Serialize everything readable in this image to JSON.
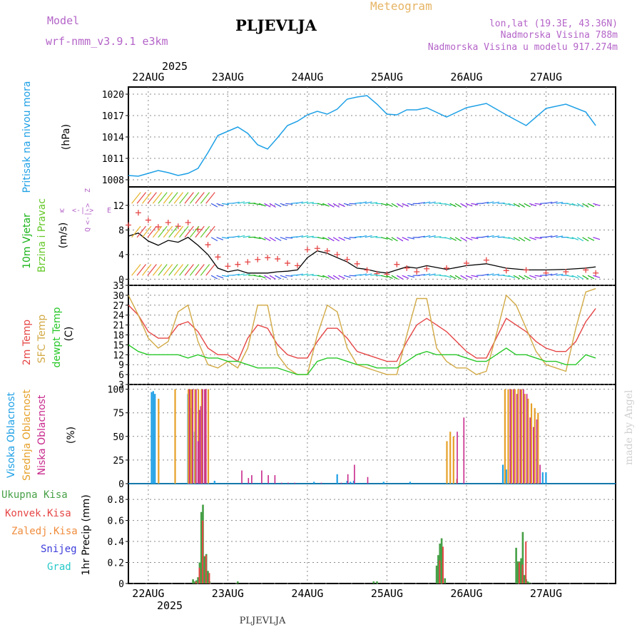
{
  "header": {
    "model_label": "Model",
    "model_name": "wrf-nmm_v3.9.1 e3km",
    "location": "PLJEVLJA",
    "product": "Meteogram",
    "coords": "lon,lat (19.3E, 43.36N)",
    "elevation": "Nadmorska Visina 788m",
    "model_elevation": "Nadmorska Visina u modelu 917.274m",
    "footer_location": "PLJEVLJA",
    "credit": "made by Angel",
    "year": "2025"
  },
  "colors": {
    "pressure": "#1ea0e6",
    "wind_green": "#18b418",
    "wind_lime": "#64c828",
    "t2m": "#e64646",
    "sfc": "#d2aa46",
    "dewpt": "#28c828",
    "high_cloud": "#1ea0e6",
    "mid_cloud": "#e6a028",
    "low_cloud": "#c8288c",
    "total_precip": "#46a046",
    "conv_precip": "#e64646",
    "frz_precip": "#f08c3c",
    "snow": "#3c3cdc",
    "hail": "#28c8c8",
    "meta": "#b464c8",
    "title_orange": "#e6b464"
  },
  "chart_data": [
    {
      "type": "line",
      "id": "pressure",
      "title": "Pritisak na nivou mora",
      "ylabel": "(hPa)",
      "ylim": [
        1007,
        1021
      ],
      "yticks": [
        1008,
        1011,
        1014,
        1017,
        1020
      ],
      "x_hours": [
        0,
        3,
        6,
        9,
        12,
        15,
        18,
        21,
        24,
        27,
        30,
        33,
        36,
        39,
        42,
        45,
        48,
        51,
        54,
        57,
        60,
        63,
        66,
        69,
        72,
        75,
        78,
        81,
        84,
        87,
        90,
        96,
        102,
        108,
        114,
        120,
        126,
        132,
        138,
        141
      ],
      "series": [
        {
          "name": "MSLP",
          "values": [
            1008.6,
            1008.5,
            1008.9,
            1009.3,
            1009.0,
            1008.6,
            1008.9,
            1009.6,
            1011.8,
            1014.2,
            1014.8,
            1015.4,
            1014.5,
            1012.9,
            1012.3,
            1013.9,
            1015.6,
            1016.2,
            1017.1,
            1017.6,
            1017.2,
            1017.9,
            1019.3,
            1019.6,
            1019.8,
            1018.6,
            1017.2,
            1017.1,
            1017.8,
            1017.8,
            1018.1,
            1016.8,
            1018.1,
            1018.7,
            1017.1,
            1015.6,
            1018.0,
            1018.6,
            1017.5,
            1015.6
          ]
        }
      ]
    },
    {
      "type": "line",
      "id": "wind",
      "title": "10m Vjetar",
      "subtitle": "Brzina i Pravac",
      "ylabel": "(m/s)",
      "ylim": [
        -1,
        15
      ],
      "yticks": [
        0,
        4,
        8,
        12
      ],
      "legend_dir": [
        "w",
        "<-|->",
        "E",
        "Z",
        "<-|->",
        "Q"
      ],
      "x_hours": [
        0,
        3,
        6,
        9,
        12,
        15,
        18,
        21,
        24,
        27,
        30,
        33,
        36,
        39,
        42,
        45,
        48,
        51,
        54,
        57,
        60,
        63,
        66,
        69,
        72,
        75,
        78,
        81,
        84,
        87,
        90,
        96,
        102,
        108,
        114,
        120,
        126,
        132,
        138,
        141
      ],
      "series": [
        {
          "name": "speed",
          "values": [
            7.0,
            7.5,
            6.2,
            5.5,
            6.3,
            6.0,
            6.8,
            5.5,
            4.0,
            1.8,
            1.2,
            1.5,
            1.0,
            1.0,
            1.0,
            1.2,
            1.3,
            1.5,
            3.5,
            4.6,
            4.2,
            3.5,
            2.8,
            1.8,
            1.6,
            1.2,
            1.0,
            1.5,
            2.0,
            1.8,
            2.2,
            1.6,
            2.2,
            2.5,
            1.8,
            1.5,
            1.5,
            1.6,
            1.8,
            2.0
          ]
        },
        {
          "name": "gust",
          "values": [
            8.8,
            10.8,
            9.6,
            8.5,
            9.2,
            8.6,
            9.2,
            8.1,
            5.6,
            3.6,
            2.1,
            2.4,
            2.8,
            3.2,
            3.5,
            3.3,
            2.6,
            2.2,
            4.8,
            5.0,
            4.6,
            4.0,
            3.2,
            2.5,
            1.5,
            0.9,
            0.8,
            2.4,
            1.8,
            1.2,
            1.7,
            1.8,
            2.6,
            3.1,
            1.4,
            1.5,
            1.0,
            1.2,
            1.5,
            1.0
          ]
        }
      ]
    },
    {
      "type": "line",
      "id": "temperature",
      "title": "2m Temp",
      "title2": "SFC Temp",
      "title3": "dewpt Temp",
      "ylabel": "(C)",
      "ylim": [
        3,
        33
      ],
      "yticks": [
        3,
        6,
        9,
        12,
        15,
        18,
        21,
        24,
        27,
        30,
        33
      ],
      "x_hours": [
        0,
        3,
        6,
        9,
        12,
        15,
        18,
        21,
        24,
        27,
        30,
        33,
        36,
        39,
        42,
        45,
        48,
        51,
        54,
        57,
        60,
        63,
        66,
        69,
        72,
        75,
        78,
        81,
        84,
        87,
        90,
        93,
        96,
        99,
        102,
        105,
        108,
        111,
        114,
        117,
        120,
        123,
        126,
        129,
        132,
        135,
        138,
        141
      ],
      "series": [
        {
          "name": "2m Temp",
          "values": [
            27,
            24,
            19,
            17,
            17,
            21,
            22,
            19,
            14,
            12,
            12,
            10,
            17,
            21,
            20,
            15,
            12,
            11,
            11,
            16,
            20,
            20,
            17,
            13,
            12,
            11,
            10,
            10,
            16,
            21,
            23,
            21,
            19,
            16,
            13,
            11,
            11,
            17,
            23,
            21,
            19,
            16,
            14,
            13,
            13,
            16,
            22,
            26
          ]
        },
        {
          "name": "SFC Temp",
          "values": [
            30,
            24,
            17,
            14,
            16,
            25,
            27,
            16,
            9,
            8,
            10,
            8,
            14,
            27,
            27,
            12,
            8,
            6,
            6,
            18,
            27,
            25,
            14,
            9,
            8,
            7,
            6,
            6,
            18,
            29,
            29,
            14,
            10,
            8,
            8,
            6,
            7,
            18,
            30,
            27,
            20,
            13,
            9,
            8,
            7,
            20,
            31,
            32
          ]
        },
        {
          "name": "dewpt Temp",
          "values": [
            15,
            13,
            12,
            12,
            12,
            12,
            11,
            12,
            11,
            11,
            10,
            10,
            9,
            8,
            8,
            8,
            7,
            6,
            6,
            10,
            11,
            11,
            10,
            9,
            9,
            8,
            8,
            8,
            10,
            12,
            13,
            12,
            12,
            12,
            11,
            10,
            10,
            12,
            14,
            12,
            12,
            11,
            10,
            10,
            9,
            9,
            12,
            11
          ]
        }
      ]
    },
    {
      "type": "bar",
      "id": "clouds",
      "title": "Visoka Oblacnost",
      "title2": "Srednja Oblacnost",
      "title3": "Niska Oblacnost",
      "ylabel": "(%)",
      "ylim": [
        0,
        105
      ],
      "yticks": [
        0,
        25,
        50,
        75,
        100
      ],
      "series": [
        {
          "name": "Visoka",
          "x_hours": [
            7,
            7.5,
            8,
            18,
            19,
            20,
            26,
            56,
            63,
            66,
            67,
            68,
            77,
            85,
            113,
            114,
            125,
            126
          ],
          "values": [
            97,
            98,
            95,
            95,
            80,
            55,
            3,
            2,
            10,
            3,
            2,
            3,
            2,
            2,
            20,
            15,
            12,
            12
          ]
        },
        {
          "name": "Srednja",
          "x_hours": [
            9,
            14,
            18,
            18.5,
            19,
            20,
            21,
            22,
            23,
            24,
            96,
            97,
            98,
            99,
            113.5,
            114.5,
            115.5,
            116.5,
            117.5,
            118.5,
            119.5,
            120.5,
            121.5,
            122.5,
            123.5
          ],
          "values": [
            90,
            100,
            100,
            100,
            100,
            100,
            100,
            100,
            100,
            100,
            45,
            55,
            50,
            5,
            100,
            100,
            100,
            100,
            100,
            100,
            95,
            90,
            85,
            80,
            75
          ]
        },
        {
          "name": "Niska",
          "x_hours": [
            18.2,
            19.2,
            20.2,
            20.8,
            21.2,
            21.6,
            22.2,
            22.8,
            23.2,
            34,
            36,
            37,
            40,
            42,
            44,
            46,
            48,
            50,
            58,
            64,
            66,
            68,
            72,
            99,
            101,
            115,
            116,
            117,
            118,
            119,
            120,
            121,
            122,
            123,
            124
          ],
          "values": [
            100,
            100,
            100,
            45,
            78,
            82,
            100,
            100,
            100,
            14,
            6,
            9,
            14,
            9,
            9,
            1,
            1,
            1,
            1,
            1,
            10,
            20,
            7,
            55,
            70,
            100,
            100,
            95,
            100,
            100,
            95,
            70,
            60,
            68,
            20
          ]
        }
      ]
    },
    {
      "type": "bar",
      "id": "precip",
      "title": "1hr Precip (mm)",
      "ylabel": "1hr Precip (mm)",
      "legend": [
        "Ukupna Kisa",
        "Konvek.Kisa",
        "Zaledj.Kisa",
        "Snijeg",
        "Grad"
      ],
      "ylim": [
        0,
        0.95
      ],
      "yticks": [
        0,
        0.2,
        0.4,
        0.6,
        0.8
      ],
      "series": [
        {
          "name": "Ukupna Kisa",
          "x_hours": [
            19.5,
            20,
            20.5,
            21,
            21.5,
            22,
            22.5,
            23,
            23.5,
            24,
            24.5,
            33,
            74,
            75,
            93,
            93.5,
            94,
            94.5,
            95,
            95.5,
            117,
            117.5,
            118,
            118.5,
            119,
            119.5,
            120,
            120.5,
            121
          ],
          "values": [
            0.04,
            0.02,
            0.03,
            0.06,
            0.2,
            0.68,
            0.75,
            0.26,
            0.28,
            0.12,
            0.02,
            0.02,
            0.02,
            0.02,
            0.17,
            0.27,
            0.38,
            0.43,
            0.0,
            0.05,
            0.34,
            0.21,
            0.21,
            0.24,
            0.49,
            0.08,
            0.04,
            0.02,
            0.01
          ]
        },
        {
          "name": "Konvek.Kisa",
          "x_hours": [
            20.2,
            21.2,
            22.2,
            23.2,
            24.2,
            93.7,
            94.7,
            117.7,
            118.7,
            119.7
          ],
          "values": [
            0.02,
            0.15,
            0.6,
            0.27,
            0.1,
            0.22,
            0.35,
            0.2,
            0.18,
            0.4
          ]
        }
      ]
    }
  ],
  "x_axis": {
    "labels": [
      "22AUG",
      "23AUG",
      "24AUG",
      "25AUG",
      "26AUG",
      "27AUG"
    ],
    "label_hours": [
      6,
      30,
      54,
      78,
      102,
      126
    ],
    "range_hours": [
      0,
      147
    ]
  }
}
